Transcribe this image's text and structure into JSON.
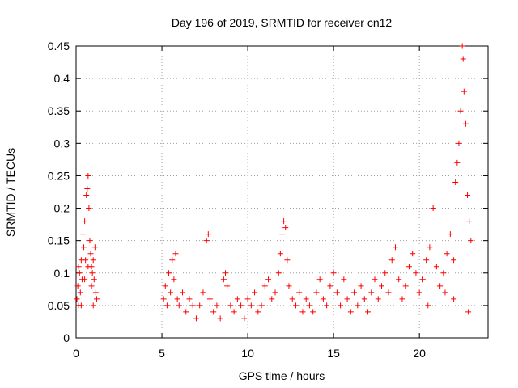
{
  "chart_data": {
    "type": "scatter",
    "title": "Day 196 of 2019, SRMTID for receiver cn12",
    "xlabel": "GPS time / hours",
    "ylabel": "SRMTID / TECUs",
    "xlim": [
      0,
      24
    ],
    "ylim": [
      0,
      0.45
    ],
    "xticks": [
      0,
      5,
      10,
      15,
      20
    ],
    "yticks": [
      0,
      0.05,
      0.1,
      0.15,
      0.2,
      0.25,
      0.3,
      0.35,
      0.4,
      0.45
    ],
    "grid": true,
    "marker": "+",
    "color": "#ff0000",
    "series": [
      {
        "name": "SRMTID",
        "points": [
          [
            0.05,
            0.06
          ],
          [
            0.1,
            0.08
          ],
          [
            0.15,
            0.05
          ],
          [
            0.2,
            0.1
          ],
          [
            0.25,
            0.07
          ],
          [
            0.3,
            0.12
          ],
          [
            0.35,
            0.09
          ],
          [
            0.4,
            0.16
          ],
          [
            0.45,
            0.14
          ],
          [
            0.5,
            0.18
          ],
          [
            0.55,
            0.12
          ],
          [
            0.6,
            0.22
          ],
          [
            0.65,
            0.23
          ],
          [
            0.7,
            0.25
          ],
          [
            0.75,
            0.2
          ],
          [
            0.8,
            0.15
          ],
          [
            0.85,
            0.13
          ],
          [
            0.9,
            0.11
          ],
          [
            0.95,
            0.1
          ],
          [
            1.0,
            0.12
          ],
          [
            1.05,
            0.09
          ],
          [
            1.1,
            0.14
          ],
          [
            1.15,
            0.07
          ],
          [
            1.2,
            0.06
          ],
          [
            0.3,
            0.05
          ],
          [
            0.5,
            0.09
          ],
          [
            0.7,
            0.11
          ],
          [
            0.9,
            0.08
          ],
          [
            1.0,
            0.05
          ],
          [
            0.15,
            0.11
          ],
          [
            5.1,
            0.06
          ],
          [
            5.2,
            0.08
          ],
          [
            5.3,
            0.05
          ],
          [
            5.4,
            0.1
          ],
          [
            5.5,
            0.07
          ],
          [
            5.6,
            0.12
          ],
          [
            5.7,
            0.09
          ],
          [
            5.8,
            0.13
          ],
          [
            5.9,
            0.06
          ],
          [
            6.0,
            0.05
          ],
          [
            6.2,
            0.07
          ],
          [
            6.4,
            0.04
          ],
          [
            6.6,
            0.06
          ],
          [
            6.8,
            0.05
          ],
          [
            7.0,
            0.03
          ],
          [
            7.2,
            0.05
          ],
          [
            7.4,
            0.07
          ],
          [
            7.6,
            0.15
          ],
          [
            7.7,
            0.16
          ],
          [
            7.8,
            0.06
          ],
          [
            8.0,
            0.04
          ],
          [
            8.2,
            0.05
          ],
          [
            8.4,
            0.03
          ],
          [
            8.6,
            0.09
          ],
          [
            8.7,
            0.1
          ],
          [
            8.8,
            0.08
          ],
          [
            9.0,
            0.05
          ],
          [
            9.2,
            0.04
          ],
          [
            9.4,
            0.06
          ],
          [
            9.6,
            0.05
          ],
          [
            9.8,
            0.03
          ],
          [
            10.0,
            0.06
          ],
          [
            10.2,
            0.05
          ],
          [
            10.4,
            0.07
          ],
          [
            10.6,
            0.04
          ],
          [
            10.8,
            0.05
          ],
          [
            11.0,
            0.08
          ],
          [
            11.2,
            0.09
          ],
          [
            11.4,
            0.06
          ],
          [
            11.6,
            0.07
          ],
          [
            11.8,
            0.1
          ],
          [
            11.9,
            0.13
          ],
          [
            12.0,
            0.16
          ],
          [
            12.1,
            0.18
          ],
          [
            12.2,
            0.17
          ],
          [
            12.3,
            0.12
          ],
          [
            12.4,
            0.08
          ],
          [
            12.6,
            0.06
          ],
          [
            12.8,
            0.05
          ],
          [
            13.0,
            0.07
          ],
          [
            13.2,
            0.04
          ],
          [
            13.4,
            0.06
          ],
          [
            13.6,
            0.05
          ],
          [
            13.8,
            0.04
          ],
          [
            14.0,
            0.07
          ],
          [
            14.2,
            0.09
          ],
          [
            14.4,
            0.06
          ],
          [
            14.6,
            0.05
          ],
          [
            14.8,
            0.08
          ],
          [
            15.0,
            0.1
          ],
          [
            15.2,
            0.07
          ],
          [
            15.4,
            0.05
          ],
          [
            15.6,
            0.09
          ],
          [
            15.8,
            0.06
          ],
          [
            16.0,
            0.04
          ],
          [
            16.2,
            0.07
          ],
          [
            16.4,
            0.05
          ],
          [
            16.6,
            0.08
          ],
          [
            16.8,
            0.06
          ],
          [
            17.0,
            0.04
          ],
          [
            17.2,
            0.07
          ],
          [
            17.4,
            0.09
          ],
          [
            17.6,
            0.06
          ],
          [
            17.8,
            0.08
          ],
          [
            18.0,
            0.1
          ],
          [
            18.2,
            0.07
          ],
          [
            18.4,
            0.12
          ],
          [
            18.6,
            0.14
          ],
          [
            18.8,
            0.09
          ],
          [
            19.0,
            0.06
          ],
          [
            19.2,
            0.08
          ],
          [
            19.4,
            0.11
          ],
          [
            19.6,
            0.13
          ],
          [
            19.8,
            0.1
          ],
          [
            20.0,
            0.07
          ],
          [
            20.2,
            0.09
          ],
          [
            20.4,
            0.12
          ],
          [
            20.6,
            0.14
          ],
          [
            20.8,
            0.2
          ],
          [
            21.0,
            0.11
          ],
          [
            21.2,
            0.08
          ],
          [
            21.4,
            0.1
          ],
          [
            21.6,
            0.13
          ],
          [
            21.8,
            0.16
          ],
          [
            22.0,
            0.12
          ],
          [
            22.1,
            0.24
          ],
          [
            22.2,
            0.27
          ],
          [
            22.3,
            0.3
          ],
          [
            22.4,
            0.35
          ],
          [
            22.5,
            0.45
          ],
          [
            22.55,
            0.43
          ],
          [
            22.6,
            0.38
          ],
          [
            22.7,
            0.33
          ],
          [
            22.8,
            0.22
          ],
          [
            22.9,
            0.18
          ],
          [
            23.0,
            0.15
          ],
          [
            22.85,
            0.04
          ],
          [
            22.0,
            0.06
          ],
          [
            21.5,
            0.07
          ],
          [
            20.5,
            0.05
          ]
        ]
      }
    ]
  }
}
